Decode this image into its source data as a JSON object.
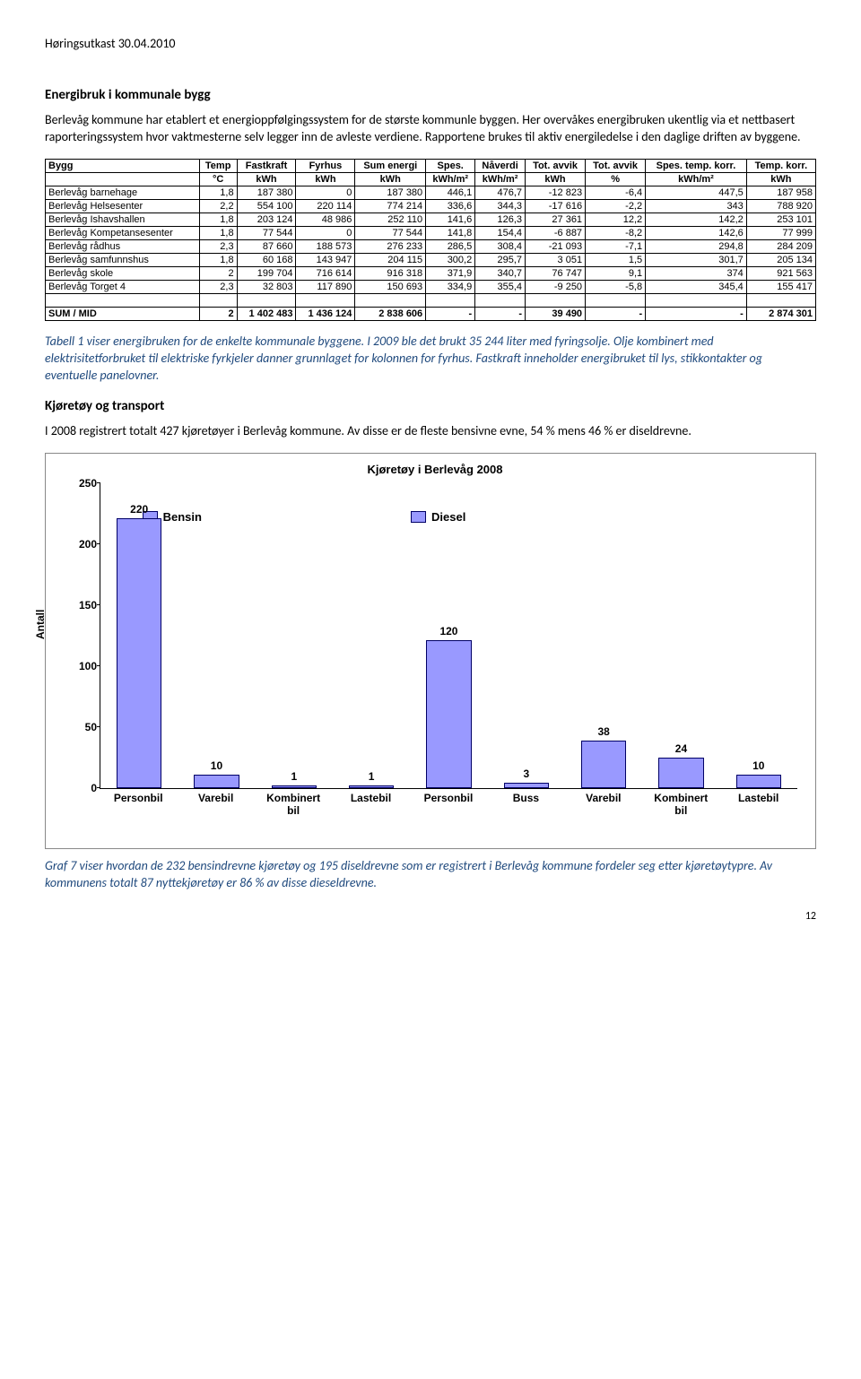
{
  "header": "Høringsutkast 30.04.2010",
  "section1_title": "Energibruk i kommunale bygg",
  "section1_para": "Berlevåg kommune har etablert et energioppfølgingssystem for de største kommunle byggen. Her overvåkes energibruken ukentlig via et nettbasert raporteringssystem hvor vaktmesterne selv legger inn de avleste verdiene. Rapportene brukes til aktiv energiledelse i den daglige driften av byggene.",
  "table": {
    "headers_row1": [
      "Bygg",
      "Temp",
      "Fastkraft",
      "Fyrhus",
      "Sum energi",
      "Spes.",
      "Nåverdi",
      "Tot. avvik",
      "Tot. avvik",
      "Spes. temp. korr.",
      "Temp. korr."
    ],
    "headers_row2": [
      "",
      "°C",
      "kWh",
      "kWh",
      "kWh",
      "kWh/m²",
      "kWh/m²",
      "kWh",
      "%",
      "kWh/m²",
      "kWh"
    ],
    "rows": [
      [
        "Berlevåg barnehage",
        "1,8",
        "187 380",
        "0",
        "187 380",
        "446,1",
        "476,7",
        "-12 823",
        "-6,4",
        "447,5",
        "187 958"
      ],
      [
        "Berlevåg Helsesenter",
        "2,2",
        "554 100",
        "220 114",
        "774 214",
        "336,6",
        "344,3",
        "-17 616",
        "-2,2",
        "343",
        "788 920"
      ],
      [
        "Berlevåg Ishavshallen",
        "1,8",
        "203 124",
        "48 986",
        "252 110",
        "141,6",
        "126,3",
        "27 361",
        "12,2",
        "142,2",
        "253 101"
      ],
      [
        "Berlevåg Kompetansesenter",
        "1,8",
        "77 544",
        "0",
        "77 544",
        "141,8",
        "154,4",
        "-6 887",
        "-8,2",
        "142,6",
        "77 999"
      ],
      [
        "Berlevåg rådhus",
        "2,3",
        "87 660",
        "188 573",
        "276 233",
        "286,5",
        "308,4",
        "-21 093",
        "-7,1",
        "294,8",
        "284 209"
      ],
      [
        "Berlevåg samfunnshus",
        "1,8",
        "60 168",
        "143 947",
        "204 115",
        "300,2",
        "295,7",
        "3 051",
        "1,5",
        "301,7",
        "205 134"
      ],
      [
        "Berlevåg skole",
        "2",
        "199 704",
        "716 614",
        "916 318",
        "371,9",
        "340,7",
        "76 747",
        "9,1",
        "374",
        "921 563"
      ],
      [
        "Berlevåg Torget 4",
        "2,3",
        "32 803",
        "117 890",
        "150 693",
        "334,9",
        "355,4",
        "-9 250",
        "-5,8",
        "345,4",
        "155 417"
      ]
    ],
    "sum_row": [
      "SUM / MID",
      "2",
      "1 402 483",
      "1 436 124",
      "2 838 606",
      "-",
      "-",
      "39 490",
      "-",
      "-",
      "2 874 301"
    ]
  },
  "caption1": "Tabell 1 viser energibruken for de enkelte kommunale byggene. I 2009 ble det brukt 35 244 liter med fyringsolje. Olje kombinert med elektrisitetforbruket til elektriske fyrkjeler danner grunnlaget for kolonnen for fyrhus. Fastkraft inneholder energibruket til lys, stikkontakter og eventuelle panelovner.",
  "section2_title": "Kjøretøy og transport",
  "section2_para": "I 2008 registrert totalt 427 kjøretøyer i Berlevåg kommune. Av disse er de fleste bensivne evne, 54 % mens 46 % er diseldrevne.",
  "chart": {
    "title": "Kjøretøy i Berlevåg 2008",
    "ylabel": "Antall",
    "ymax": 250,
    "yticks": [
      0,
      50,
      100,
      150,
      200,
      250
    ],
    "legend": [
      "Bensin",
      "Diesel"
    ],
    "categories": [
      "Personbil",
      "Varebil",
      "Kombinert bil",
      "Lastebil",
      "Personbil",
      "Buss",
      "Varebil",
      "Kombinert bil",
      "Lastebil"
    ],
    "values": [
      220,
      10,
      1,
      1,
      120,
      3,
      38,
      24,
      10
    ],
    "bar_color": "#9999ff",
    "bar_border": "#000066"
  },
  "caption2": "Graf 7 viser hvordan de 232 bensindrevne kjøretøy og 195 diseldrevne som er registrert i Berlevåg kommune fordeler seg etter kjøretøytypre. Av kommunens totalt 87 nyttekjøretøy er 86 % av disse dieseldrevne.",
  "page_number": "12"
}
